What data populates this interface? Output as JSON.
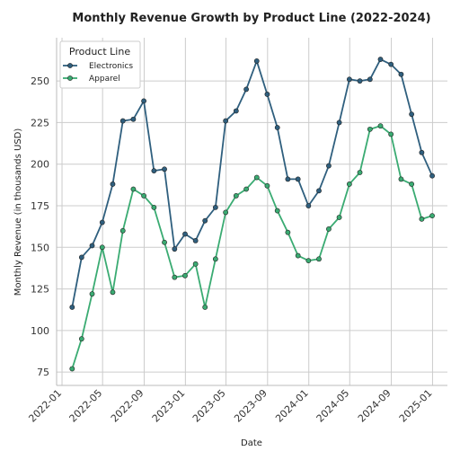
{
  "chart_data": {
    "type": "line",
    "title": "Monthly Revenue Growth by Product Line (2022-2024)",
    "xlabel": "Date",
    "ylabel": "Monthly Revenue (in thousands USD)",
    "ylim": [
      67,
      276
    ],
    "xlim": [
      "2021-12-16",
      "2025-02-14"
    ],
    "yticks": [
      75,
      100,
      125,
      150,
      175,
      200,
      225,
      250
    ],
    "xticks": [
      "2022-01",
      "2022-05",
      "2022-09",
      "2023-01",
      "2023-05",
      "2023-09",
      "2024-01",
      "2024-05",
      "2024-09",
      "2025-01"
    ],
    "grid": true,
    "legend": {
      "title": "Product Line",
      "placement": "top-left"
    },
    "x": [
      "2022-01-31",
      "2022-02-28",
      "2022-03-31",
      "2022-04-30",
      "2022-05-31",
      "2022-06-30",
      "2022-07-31",
      "2022-08-31",
      "2022-09-30",
      "2022-10-31",
      "2022-11-30",
      "2022-12-31",
      "2023-01-31",
      "2023-02-28",
      "2023-03-31",
      "2023-04-30",
      "2023-05-31",
      "2023-06-30",
      "2023-07-31",
      "2023-08-31",
      "2023-09-30",
      "2023-10-31",
      "2023-11-30",
      "2023-12-31",
      "2024-01-31",
      "2024-02-29",
      "2024-03-31",
      "2024-04-30",
      "2024-05-31",
      "2024-06-30",
      "2024-07-31",
      "2024-08-31",
      "2024-09-30",
      "2024-10-31",
      "2024-11-30",
      "2024-12-31"
    ],
    "series": [
      {
        "name": "Electronics",
        "color": "#2f5f7e",
        "values": [
          114,
          144,
          151,
          165,
          188,
          226,
          227,
          238,
          196,
          197,
          149,
          158,
          154,
          166,
          174,
          226,
          232,
          245,
          262,
          242,
          222,
          191,
          191,
          175,
          184,
          199,
          225,
          251,
          250,
          251,
          263,
          260,
          254,
          230,
          207,
          193
        ]
      },
      {
        "name": "Apparel",
        "color": "#3aab72",
        "values": [
          77,
          95,
          122,
          150,
          123,
          160,
          185,
          181,
          174,
          153,
          132,
          133,
          140,
          114,
          143,
          171,
          181,
          185,
          192,
          187,
          172,
          159,
          145,
          142,
          143,
          161,
          168,
          188,
          195,
          221,
          223,
          218,
          191,
          188,
          167,
          169
        ]
      }
    ]
  }
}
